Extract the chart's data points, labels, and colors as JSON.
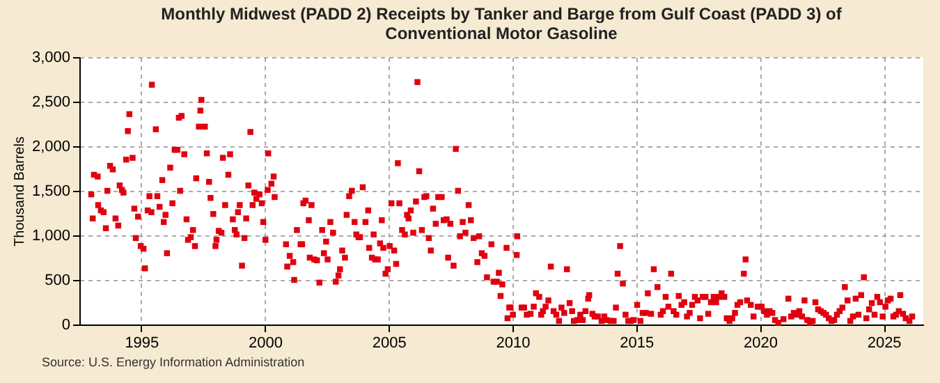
{
  "chart_data": {
    "type": "scatter",
    "title": "Monthly Midwest (PADD 2) Receipts by Tanker and Barge from Gulf Coast (PADD 3) of Conventional Motor Gasoline",
    "ylabel": "Thousand Barrels",
    "annotations": [
      "Source: U.S. Energy Information Administration"
    ],
    "marker": "square",
    "grid": true,
    "xlim": [
      1992.5,
      2026.6
    ],
    "xticks": [
      1995,
      2000,
      2005,
      2010,
      2015,
      2020,
      2025
    ],
    "ylim": [
      0,
      3000
    ],
    "yticks": [
      0,
      500,
      {
        "value": 1000,
        "label": "1,000"
      },
      {
        "value": 1500,
        "label": "1,500"
      },
      {
        "value": 2000,
        "label": "2,000"
      },
      {
        "value": 2500,
        "label": "2,500"
      },
      {
        "value": 3000,
        "label": "3,000"
      }
    ],
    "series": [
      {
        "color": "#e00010",
        "x": [
          1992.98,
          1993.04,
          1993.09,
          1993.24,
          1993.26,
          1993.37,
          1993.48,
          1993.57,
          1993.63,
          1993.74,
          1993.85,
          1993.96,
          1994.07,
          1994.13,
          1994.22,
          1994.28,
          1994.39,
          1994.46,
          1994.52,
          1994.65,
          1994.72,
          1994.78,
          1994.87,
          1994.98,
          1995.09,
          1995.15,
          1995.26,
          1995.33,
          1995.41,
          1995.43,
          1995.59,
          1995.65,
          1995.74,
          1995.85,
          1995.91,
          1995.98,
          1996.04,
          1996.17,
          1996.26,
          1996.35,
          1996.46,
          1996.52,
          1996.57,
          1996.63,
          1996.74,
          1996.83,
          1996.89,
          1997.0,
          1997.09,
          1997.17,
          1997.22,
          1997.33,
          1997.39,
          1997.43,
          1997.57,
          1997.65,
          1997.74,
          1997.8,
          1997.91,
          1998.0,
          1998.04,
          1998.13,
          1998.24,
          1998.3,
          1998.39,
          1998.52,
          1998.59,
          1998.7,
          1998.78,
          1998.85,
          1998.91,
          1998.98,
          1999.07,
          1999.17,
          1999.24,
          1999.33,
          1999.41,
          1999.5,
          1999.57,
          1999.65,
          1999.78,
          1999.87,
          1999.93,
          2000.02,
          2000.11,
          2000.13,
          2000.26,
          2000.35,
          2000.39,
          2000.85,
          2000.9,
          2001.0,
          2001.14,
          2001.18,
          2001.29,
          2001.44,
          2001.5,
          2001.55,
          2001.64,
          2001.77,
          2001.81,
          2001.88,
          2001.99,
          2002.1,
          2002.2,
          2002.31,
          2002.38,
          2002.47,
          2002.53,
          2002.64,
          2002.75,
          2002.86,
          2002.97,
          2003.03,
          2003.12,
          2003.23,
          2003.3,
          2003.4,
          2003.51,
          2003.62,
          2003.69,
          2003.78,
          2003.84,
          2003.95,
          2004.06,
          2004.17,
          2004.21,
          2004.32,
          2004.39,
          2004.45,
          2004.56,
          2004.65,
          2004.72,
          2004.78,
          2004.87,
          2004.96,
          2005.04,
          2005.11,
          2005.22,
          2005.3,
          2005.37,
          2005.43,
          2005.54,
          2005.65,
          2005.74,
          2005.8,
          2005.89,
          2005.99,
          2006.1,
          2006.16,
          2006.23,
          2006.34,
          2006.44,
          2006.52,
          2006.62,
          2006.7,
          2006.79,
          2006.9,
          2007.0,
          2007.14,
          2007.22,
          2007.34,
          2007.4,
          2007.49,
          2007.62,
          2007.71,
          2007.8,
          2007.88,
          2007.99,
          2008.1,
          2008.23,
          2008.32,
          2008.43,
          2008.58,
          2008.65,
          2008.76,
          2008.87,
          2008.97,
          2009.15,
          2009.24,
          2009.37,
          2009.45,
          2009.52,
          2009.59,
          2009.76,
          2009.8,
          2009.87,
          2009.92,
          2010.02,
          2010.17,
          2010.19,
          2010.37,
          2010.47,
          2010.58,
          2010.73,
          2010.86,
          2010.95,
          2011.08,
          2011.16,
          2011.23,
          2011.34,
          2011.45,
          2011.55,
          2011.66,
          2011.77,
          2011.88,
          2011.98,
          2012.09,
          2012.2,
          2012.31,
          2012.41,
          2012.48,
          2012.63,
          2012.74,
          2012.84,
          2012.95,
          2013.06,
          2013.1,
          2013.23,
          2013.32,
          2013.45,
          2013.6,
          2013.71,
          2013.81,
          2013.97,
          2014.09,
          2014.18,
          2014.25,
          2014.35,
          2014.46,
          2014.57,
          2014.68,
          2014.78,
          2014.89,
          2015.04,
          2015.17,
          2015.26,
          2015.39,
          2015.47,
          2015.6,
          2015.71,
          2015.86,
          2015.99,
          2016.08,
          2016.19,
          2016.3,
          2016.41,
          2016.51,
          2016.62,
          2016.72,
          2016.83,
          2016.94,
          2017.05,
          2017.16,
          2017.26,
          2017.37,
          2017.48,
          2017.58,
          2017.69,
          2017.8,
          2017.91,
          2018.02,
          2018.13,
          2018.23,
          2018.34,
          2018.45,
          2018.56,
          2018.66,
          2018.77,
          2018.88,
          2018.99,
          2019.09,
          2019.2,
          2019.35,
          2019.42,
          2019.48,
          2019.63,
          2019.74,
          2019.91,
          2020.07,
          2020.17,
          2020.28,
          2020.39,
          2020.5,
          2020.61,
          2020.74,
          2020.95,
          2021.15,
          2021.26,
          2021.37,
          2021.48,
          2021.59,
          2021.7,
          2021.8,
          2021.91,
          2022.02,
          2022.13,
          2022.24,
          2022.35,
          2022.46,
          2022.57,
          2022.67,
          2022.78,
          2022.89,
          2023.0,
          2023.11,
          2023.22,
          2023.33,
          2023.43,
          2023.54,
          2023.65,
          2023.76,
          2023.87,
          2023.98,
          2024.09,
          2024.2,
          2024.3,
          2024.41,
          2024.52,
          2024.63,
          2024.74,
          2024.85,
          2024.96,
          2025.07,
          2025.17,
          2025.28,
          2025.39,
          2025.5,
          2025.61,
          2025.67,
          2025.78,
          2025.89,
          2026.04,
          2026.15
        ],
        "values": [
          1460,
          1190,
          1680,
          1660,
          1340,
          1280,
          1260,
          1080,
          1500,
          1780,
          1740,
          1190,
          1110,
          1560,
          1510,
          1480,
          1850,
          2170,
          2360,
          1870,
          1300,
          970,
          1210,
          880,
          850,
          630,
          1280,
          1440,
          1260,
          2690,
          2190,
          1440,
          1320,
          1620,
          1150,
          1230,
          800,
          1760,
          1360,
          1960,
          1960,
          2320,
          1500,
          2340,
          1910,
          1180,
          950,
          980,
          1060,
          880,
          1640,
          2220,
          2400,
          2520,
          2220,
          1920,
          1600,
          1420,
          1240,
          880,
          950,
          1050,
          1030,
          1870,
          1340,
          1680,
          1910,
          1180,
          1060,
          1010,
          1260,
          1340,
          660,
          970,
          1190,
          1560,
          2160,
          1340,
          1480,
          1410,
          1460,
          1360,
          1150,
          950,
          1510,
          1920,
          1580,
          1660,
          1430,
          900,
          650,
          770,
          700,
          500,
          1060,
          900,
          900,
          1360,
          1390,
          1170,
          750,
          1340,
          730,
          720,
          470,
          1060,
          800,
          930,
          730,
          1150,
          1030,
          480,
          550,
          620,
          830,
          750,
          1230,
          1440,
          1500,
          1150,
          1010,
          980,
          980,
          1540,
          1150,
          1280,
          860,
          750,
          1010,
          730,
          730,
          910,
          1170,
          860,
          570,
          620,
          880,
          1360,
          830,
          680,
          1810,
          1360,
          1060,
          1010,
          1230,
          1190,
          1280,
          1030,
          1380,
          2720,
          1720,
          1060,
          1430,
          1440,
          970,
          830,
          1300,
          1130,
          1430,
          1430,
          1170,
          1180,
          750,
          1130,
          660,
          1970,
          1500,
          990,
          1150,
          1030,
          1340,
          1170,
          970,
          700,
          990,
          800,
          770,
          530,
          900,
          480,
          480,
          580,
          320,
          450,
          860,
          70,
          190,
          190,
          110,
          780,
          990,
          190,
          190,
          110,
          120,
          200,
          350,
          310,
          110,
          150,
          200,
          270,
          650,
          150,
          110,
          40,
          190,
          130,
          620,
          240,
          150,
          40,
          50,
          110,
          50,
          150,
          290,
          330,
          120,
          90,
          90,
          40,
          90,
          50,
          40,
          40,
          190,
          570,
          880,
          460,
          110,
          40,
          40,
          50,
          220,
          40,
          130,
          130,
          350,
          120,
          620,
          420,
          110,
          150,
          310,
          200,
          570,
          150,
          110,
          320,
          220,
          250,
          90,
          130,
          220,
          310,
          270,
          70,
          310,
          310,
          120,
          250,
          310,
          250,
          310,
          350,
          310,
          70,
          40,
          70,
          130,
          220,
          250,
          570,
          730,
          270,
          220,
          90,
          200,
          200,
          150,
          110,
          150,
          130,
          50,
          20,
          60,
          290,
          90,
          130,
          110,
          150,
          90,
          270,
          50,
          20,
          40,
          250,
          170,
          150,
          130,
          110,
          70,
          40,
          50,
          110,
          150,
          190,
          420,
          270,
          40,
          90,
          290,
          110,
          330,
          530,
          70,
          170,
          240,
          110,
          310,
          250,
          90,
          200,
          270,
          290,
          90,
          110,
          150,
          330,
          120,
          70,
          40,
          90
        ]
      }
    ]
  }
}
